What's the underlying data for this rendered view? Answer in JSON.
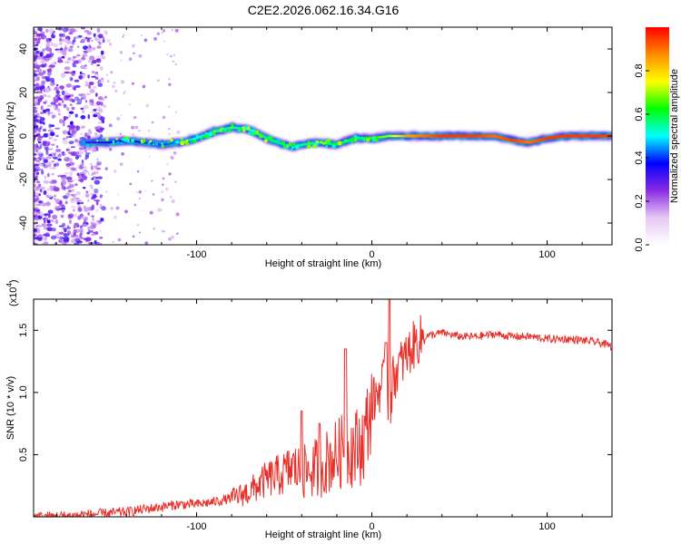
{
  "figure_title": "C2E2.2026.062.16.34.G16",
  "chart_data": [
    {
      "type": "heatmap",
      "id": "spectrogram",
      "title": "C2E2.2026.062.16.34.G16",
      "xlabel": "Height of straight line (km)",
      "ylabel": "Frequency (Hz)",
      "xlim": [
        -193,
        137
      ],
      "ylim": [
        -50,
        50
      ],
      "xticks": [
        -100,
        0,
        100
      ],
      "yticks": [
        -40,
        -20,
        0,
        20,
        40
      ],
      "colorbar": {
        "label": "Normalized spectral amplitude",
        "range": [
          0.0,
          1.0
        ],
        "ticks": [
          0.0,
          0.2,
          0.4,
          0.6,
          0.8
        ],
        "colors": [
          "#ffffff",
          "#e6c8f5",
          "#8a2be2",
          "#0000ff",
          "#00ffff",
          "#00ff00",
          "#ffff00",
          "#ff8c00",
          "#ff0000"
        ]
      },
      "signal_trace": {
        "x": [
          -165,
          -150,
          -140,
          -130,
          -120,
          -110,
          -100,
          -90,
          -80,
          -70,
          -60,
          -50,
          -45,
          -40,
          -30,
          -20,
          -10,
          0,
          10,
          20,
          40,
          60,
          70,
          80,
          90,
          100,
          110,
          120,
          137
        ],
        "freq": [
          -3,
          -3,
          -2,
          -3,
          -4,
          -3,
          -1,
          2,
          4,
          3,
          -1,
          -4,
          -5,
          -4,
          -3,
          -4,
          -1,
          -1,
          0,
          0,
          0,
          0,
          0,
          -2,
          -3,
          -1,
          0,
          0,
          0
        ],
        "amplitude": [
          0.3,
          0.35,
          0.35,
          0.4,
          0.4,
          0.45,
          0.5,
          0.55,
          0.55,
          0.5,
          0.55,
          0.6,
          0.6,
          0.55,
          0.55,
          0.6,
          0.6,
          0.65,
          0.7,
          0.85,
          0.95,
          0.95,
          0.9,
          0.95,
          0.9,
          0.95,
          0.95,
          0.95,
          0.95
        ]
      }
    },
    {
      "type": "line",
      "id": "snr",
      "xlabel": "Height of straight line (km)",
      "ylabel": "SNR (10 * v/v)",
      "y_multiplier_label": "(x10",
      "y_multiplier_exp": "4",
      "y_multiplier_close": ")",
      "xlim": [
        -193,
        137
      ],
      "ylim": [
        0,
        1.75
      ],
      "xticks": [
        -100,
        0,
        100
      ],
      "yticks": [
        0.5,
        1.0,
        1.5
      ],
      "series": [
        {
          "name": "SNR",
          "color": "#e8302a",
          "x": [
            -193,
            -170,
            -150,
            -140,
            -130,
            -120,
            -110,
            -100,
            -90,
            -80,
            -70,
            -60,
            -50,
            -45,
            -40,
            -30,
            -25,
            -20,
            -15,
            -10,
            -5,
            0,
            5,
            8,
            10,
            12,
            15,
            20,
            25,
            30,
            40,
            50,
            60,
            70,
            80,
            90,
            100,
            110,
            120,
            130,
            137
          ],
          "values": [
            0.0,
            0.01,
            0.03,
            0.04,
            0.06,
            0.08,
            0.1,
            0.1,
            0.12,
            0.15,
            0.2,
            0.3,
            0.35,
            0.4,
            0.35,
            0.4,
            0.45,
            0.5,
            0.55,
            0.55,
            0.6,
            0.9,
            1.05,
            1.1,
            0.8,
            1.1,
            1.2,
            1.3,
            1.4,
            1.45,
            1.48,
            1.45,
            1.45,
            1.47,
            1.45,
            1.45,
            1.43,
            1.43,
            1.42,
            1.4,
            1.37
          ],
          "peaks": [
            {
              "x": 10,
              "y": 1.75
            },
            {
              "x": 8,
              "y": 1.4
            },
            {
              "x": -15,
              "y": 1.35
            },
            {
              "x": -40,
              "y": 0.85
            },
            {
              "x": -30,
              "y": 0.75
            }
          ]
        }
      ]
    }
  ]
}
